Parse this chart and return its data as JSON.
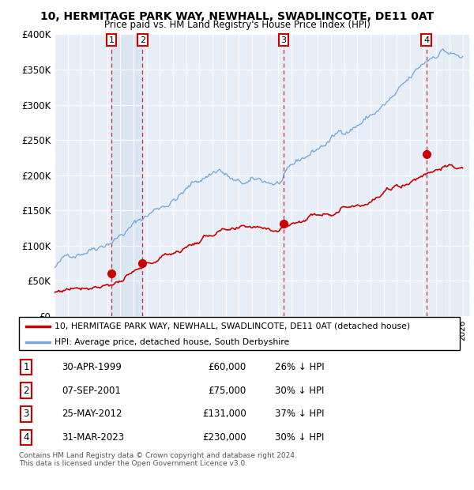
{
  "title": "10, HERMITAGE PARK WAY, NEWHALL, SWADLINCOTE, DE11 0AT",
  "subtitle": "Price paid vs. HM Land Registry's House Price Index (HPI)",
  "ylim": [
    0,
    400000
  ],
  "yticks": [
    0,
    50000,
    100000,
    150000,
    200000,
    250000,
    300000,
    350000,
    400000
  ],
  "ytick_labels": [
    "£0",
    "£50K",
    "£100K",
    "£150K",
    "£200K",
    "£250K",
    "£300K",
    "£350K",
    "£400K"
  ],
  "xlim_start": 1995.0,
  "xlim_end": 2026.5,
  "transactions": [
    {
      "num": 1,
      "date": "30-APR-1999",
      "year": 1999.33,
      "price": 60000,
      "pct": "26% ↓ HPI"
    },
    {
      "num": 2,
      "date": "07-SEP-2001",
      "year": 2001.68,
      "price": 75000,
      "pct": "30% ↓ HPI"
    },
    {
      "num": 3,
      "date": "25-MAY-2012",
      "year": 2012.4,
      "price": 131000,
      "pct": "37% ↓ HPI"
    },
    {
      "num": 4,
      "date": "31-MAR-2023",
      "year": 2023.25,
      "price": 230000,
      "pct": "30% ↓ HPI"
    }
  ],
  "property_color": "#cc0000",
  "hpi_color": "#7aaadd",
  "background_color": "#e8eef8",
  "grid_color": "#ffffff",
  "legend_label_property": "10, HERMITAGE PARK WAY, NEWHALL, SWADLINCOTE, DE11 0AT (detached house)",
  "legend_label_hpi": "HPI: Average price, detached house, South Derbyshire",
  "footnote": "Contains HM Land Registry data © Crown copyright and database right 2024.\nThis data is licensed under the Open Government Licence v3.0.",
  "hatch_color": "#c8d8e8",
  "shade_start": 1999.33,
  "shade_end": 2001.68,
  "hatch_region_start": 2024.5
}
